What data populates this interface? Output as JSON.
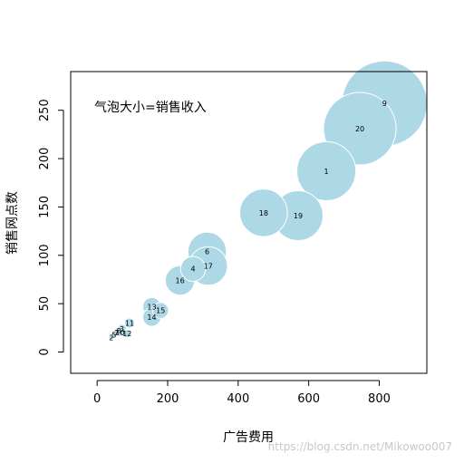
{
  "chart_data": {
    "type": "scatter",
    "subtype": "bubble",
    "xlabel": "广告费用",
    "ylabel": "销售网点数",
    "annotation": "气泡大小=销售收入",
    "xlim": [
      -75,
      935
    ],
    "ylim": [
      -22,
      290
    ],
    "x_ticks": [
      0,
      200,
      400,
      600,
      800
    ],
    "y_ticks": [
      0,
      50,
      100,
      150,
      200,
      250
    ],
    "grid": false,
    "legend": "none",
    "bubble_color": "#add8e6",
    "points": [
      {
        "label": "1",
        "x": 650,
        "y": 187,
        "size": 1.3
      },
      {
        "label": "2",
        "x": 40,
        "y": 15,
        "size": 0.1
      },
      {
        "label": "3",
        "x": 70,
        "y": 24,
        "size": 0.2
      },
      {
        "label": "4",
        "x": 272,
        "y": 86,
        "size": 0.55
      },
      {
        "label": "5",
        "x": 48,
        "y": 18,
        "size": 0.12
      },
      {
        "label": "6",
        "x": 312,
        "y": 104,
        "size": 0.85
      },
      {
        "label": "7",
        "x": 55,
        "y": 20,
        "size": 0.14
      },
      {
        "label": "8",
        "x": 62,
        "y": 22,
        "size": 0.17
      },
      {
        "label": "9",
        "x": 815,
        "y": 257,
        "size": 1.88
      },
      {
        "label": "10",
        "x": 65,
        "y": 20,
        "size": 0.16
      },
      {
        "label": "11",
        "x": 92,
        "y": 30,
        "size": 0.22
      },
      {
        "label": "12",
        "x": 85,
        "y": 19,
        "size": 0.18
      },
      {
        "label": "13",
        "x": 155,
        "y": 47,
        "size": 0.4
      },
      {
        "label": "14",
        "x": 155,
        "y": 36,
        "size": 0.4
      },
      {
        "label": "15",
        "x": 180,
        "y": 43,
        "size": 0.35
      },
      {
        "label": "16",
        "x": 235,
        "y": 74,
        "size": 0.65
      },
      {
        "label": "17",
        "x": 315,
        "y": 89,
        "size": 0.85
      },
      {
        "label": "18",
        "x": 472,
        "y": 144,
        "size": 1.05
      },
      {
        "label": "19",
        "x": 570,
        "y": 141,
        "size": 1.1
      },
      {
        "label": "20",
        "x": 745,
        "y": 231,
        "size": 1.6
      }
    ]
  },
  "watermark": "https://blog.csdn.net/Mikowoo007"
}
